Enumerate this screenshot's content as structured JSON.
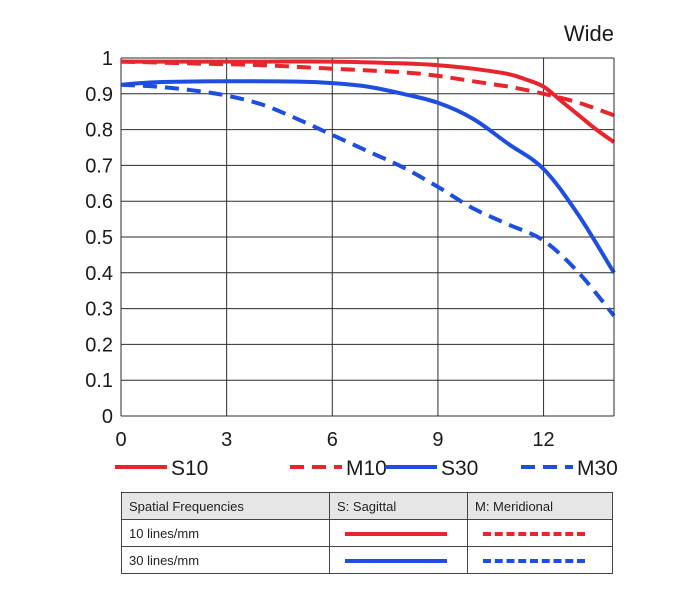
{
  "chart_data": {
    "type": "line",
    "title": "Wide",
    "xlim": [
      0,
      14
    ],
    "ylim": [
      0,
      1
    ],
    "xticks": [
      "0",
      "3",
      "6",
      "9",
      "12"
    ],
    "yticks": [
      "0",
      "0.1",
      "0.2",
      "0.3",
      "0.4",
      "0.5",
      "0.6",
      "0.7",
      "0.8",
      "0.9",
      "1"
    ],
    "grid": true,
    "legend_position": "bottom",
    "series": [
      {
        "name": "S10",
        "color": "#e8242c",
        "dash": false,
        "x": [
          0,
          2,
          4,
          6,
          8,
          9,
          10,
          11,
          11.5,
          12,
          12.5,
          13,
          13.5,
          14
        ],
        "y": [
          0.99,
          0.99,
          0.99,
          0.99,
          0.985,
          0.98,
          0.97,
          0.955,
          0.94,
          0.92,
          0.88,
          0.84,
          0.8,
          0.765
        ]
      },
      {
        "name": "M10",
        "color": "#e8242c",
        "dash": true,
        "x": [
          0,
          2,
          4,
          6,
          8,
          9,
          10,
          11,
          12,
          13,
          14
        ],
        "y": [
          0.99,
          0.985,
          0.98,
          0.97,
          0.96,
          0.95,
          0.935,
          0.92,
          0.9,
          0.875,
          0.84
        ]
      },
      {
        "name": "S30",
        "color": "#1e4ee0",
        "dash": false,
        "x": [
          0,
          1,
          3,
          5,
          6,
          7,
          8,
          9,
          10,
          11,
          12,
          13,
          14
        ],
        "y": [
          0.925,
          0.932,
          0.935,
          0.934,
          0.93,
          0.92,
          0.9,
          0.875,
          0.83,
          0.76,
          0.69,
          0.56,
          0.4
        ]
      },
      {
        "name": "M30",
        "color": "#1e4ee0",
        "dash": true,
        "x": [
          0,
          1,
          2,
          3,
          4,
          5,
          6,
          7,
          8,
          9,
          10,
          11,
          12,
          13,
          14
        ],
        "y": [
          0.925,
          0.92,
          0.91,
          0.895,
          0.87,
          0.83,
          0.785,
          0.74,
          0.695,
          0.64,
          0.58,
          0.535,
          0.49,
          0.4,
          0.28
        ]
      }
    ]
  },
  "key_table": {
    "header": {
      "col1": "Spatial Frequencies",
      "col2": "S: Sagittal",
      "col3": "M: Meridional"
    },
    "rows": [
      {
        "label": "10 lines/mm",
        "color": "#e8242c"
      },
      {
        "label": "30 lines/mm",
        "color": "#1e4ee0"
      }
    ]
  }
}
